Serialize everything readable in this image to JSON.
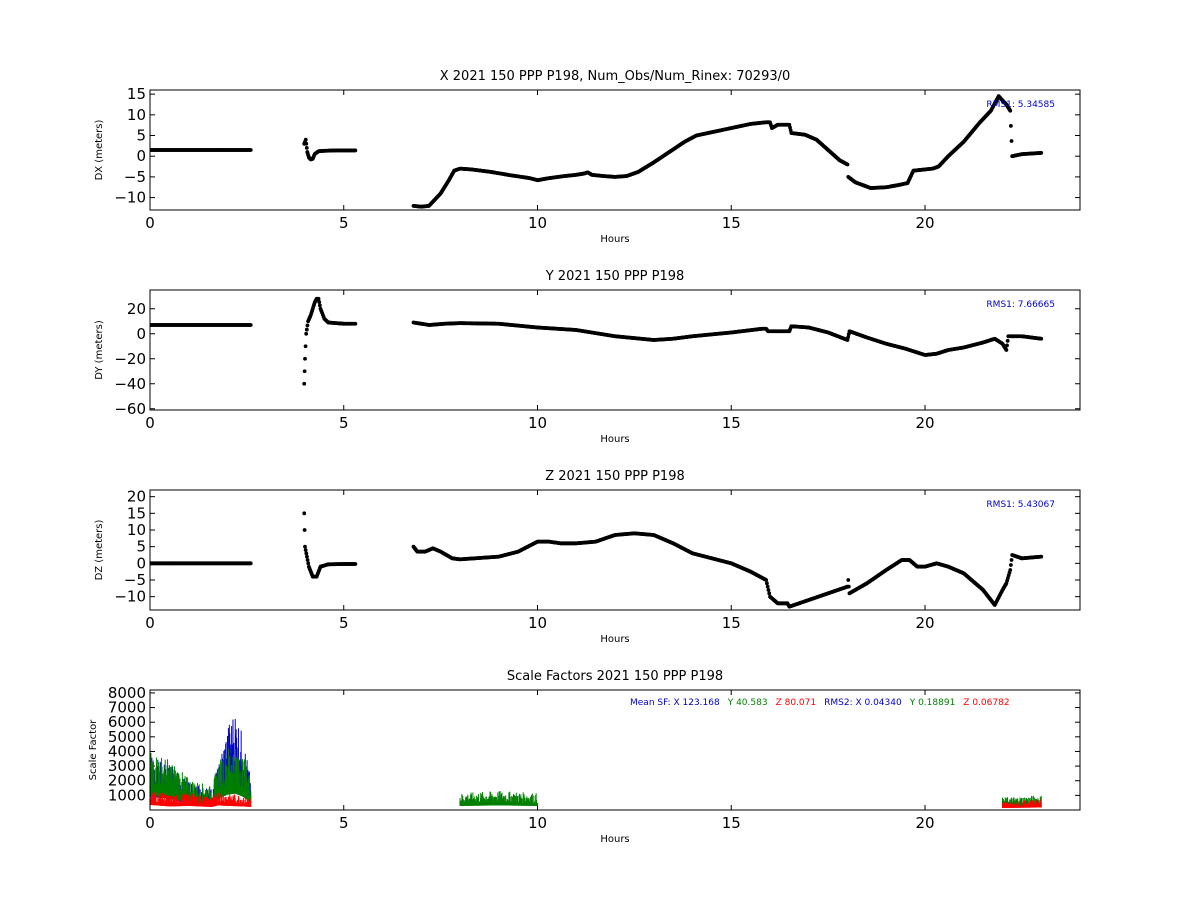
{
  "chart_data": [
    {
      "type": "scatter",
      "title": "X 2021 150 PPP  P198, Num_Obs/Num_Rinex: 70293/0",
      "xlabel": "Hours",
      "ylabel": "DX (meters)",
      "xlim": [
        0,
        24
      ],
      "ylim": [
        -13,
        16
      ],
      "x_ticks": [
        0,
        5,
        10,
        15,
        20
      ],
      "y_ticks": [
        -10,
        -5,
        0,
        5,
        10,
        15
      ],
      "annotation": "RMS1:  5.34585",
      "colors": {
        "points": "#000000",
        "error": "#d2691e",
        "annotation": "#0000cc"
      },
      "series": [
        {
          "points": [
            [
              0,
              1.5
            ],
            [
              2.6,
              1.5
            ]
          ]
        },
        {
          "points": [
            [
              3.98,
              3
            ],
            [
              4.02,
              4
            ],
            [
              4.06,
              1
            ],
            [
              4.1,
              -0.3
            ],
            [
              4.15,
              -0.8
            ],
            [
              4.2,
              -0.6
            ],
            [
              4.25,
              0.5
            ],
            [
              4.35,
              1.2
            ],
            [
              4.5,
              1.3
            ],
            [
              4.8,
              1.4
            ],
            [
              5.1,
              1.4
            ],
            [
              5.3,
              1.4
            ]
          ]
        },
        {
          "points": [
            [
              6.8,
              -12
            ],
            [
              7,
              -12.2
            ],
            [
              7.2,
              -12
            ],
            [
              7.5,
              -9
            ],
            [
              7.7,
              -6
            ],
            [
              7.85,
              -3.5
            ],
            [
              8,
              -3
            ],
            [
              8.3,
              -3.2
            ],
            [
              8.8,
              -3.8
            ],
            [
              9.3,
              -4.6
            ],
            [
              9.8,
              -5.3
            ],
            [
              10,
              -5.8
            ],
            [
              10.3,
              -5.3
            ],
            [
              10.7,
              -4.8
            ],
            [
              11,
              -4.5
            ],
            [
              11.2,
              -4.2
            ],
            [
              11.3,
              -3.9
            ],
            [
              11.4,
              -4.5
            ],
            [
              11.7,
              -4.8
            ],
            [
              12,
              -5
            ],
            [
              12.3,
              -4.8
            ],
            [
              12.6,
              -3.8
            ],
            [
              13,
              -1.5
            ],
            [
              13.4,
              1
            ],
            [
              13.8,
              3.5
            ],
            [
              14.1,
              5
            ],
            [
              14.5,
              5.8
            ],
            [
              15,
              6.8
            ],
            [
              15.5,
              7.8
            ],
            [
              15.9,
              8.2
            ],
            [
              16,
              8.2
            ],
            [
              16.05,
              6.8
            ],
            [
              16.2,
              7.6
            ],
            [
              16.5,
              7.6
            ],
            [
              16.55,
              5.6
            ],
            [
              16.9,
              5.2
            ],
            [
              17.2,
              4
            ],
            [
              17.5,
              1.5
            ],
            [
              17.8,
              -1
            ],
            [
              18,
              -2
            ],
            [
              18.02,
              -5
            ],
            [
              18.2,
              -6.3
            ],
            [
              18.6,
              -7.7
            ],
            [
              19,
              -7.5
            ],
            [
              19.3,
              -7
            ],
            [
              19.55,
              -6.5
            ],
            [
              19.7,
              -3.5
            ],
            [
              20,
              -3.2
            ],
            [
              20.2,
              -3
            ],
            [
              20.35,
              -2.5
            ],
            [
              20.6,
              0
            ],
            [
              21,
              3.5
            ],
            [
              21.4,
              8
            ],
            [
              21.7,
              11
            ],
            [
              21.9,
              14.5
            ],
            [
              22.1,
              12.5
            ],
            [
              22.2,
              11
            ],
            [
              22.25,
              0
            ],
            [
              22.5,
              0.5
            ],
            [
              23,
              0.8
            ]
          ]
        }
      ]
    },
    {
      "type": "scatter",
      "title": "Y 2021 150 PPP  P198",
      "xlabel": "Hours",
      "ylabel": "DY (meters)",
      "xlim": [
        0,
        24
      ],
      "ylim": [
        -61,
        35
      ],
      "x_ticks": [
        0,
        5,
        10,
        15,
        20
      ],
      "y_ticks": [
        -60,
        -40,
        -20,
        0,
        20
      ],
      "annotation": "RMS1:  7.66665",
      "colors": {
        "points": "#000000",
        "error": "#d2691e",
        "annotation": "#0000cc"
      },
      "series": [
        {
          "points": [
            [
              0,
              7
            ],
            [
              2.6,
              7
            ]
          ]
        },
        {
          "points": [
            [
              3.98,
              -40
            ],
            [
              4,
              -20
            ],
            [
              4.03,
              0
            ],
            [
              4.08,
              10
            ],
            [
              4.15,
              15
            ],
            [
              4.2,
              20
            ],
            [
              4.25,
              25
            ],
            [
              4.3,
              28
            ],
            [
              4.35,
              28
            ],
            [
              4.4,
              20
            ],
            [
              4.5,
              12
            ],
            [
              4.6,
              9
            ],
            [
              5,
              8
            ],
            [
              5.3,
              8
            ]
          ]
        },
        {
          "points": [
            [
              6.8,
              9
            ],
            [
              7.2,
              7
            ],
            [
              7.6,
              8
            ],
            [
              8,
              8.5
            ],
            [
              9,
              8
            ],
            [
              10,
              5
            ],
            [
              11,
              3
            ],
            [
              12,
              -2
            ],
            [
              13,
              -5
            ],
            [
              13.5,
              -4
            ],
            [
              14,
              -2
            ],
            [
              15,
              1
            ],
            [
              15.8,
              4
            ],
            [
              15.9,
              4
            ],
            [
              15.95,
              2
            ],
            [
              16.5,
              2
            ],
            [
              16.55,
              6
            ],
            [
              17,
              5
            ],
            [
              17.5,
              1
            ],
            [
              18,
              -5
            ],
            [
              18.05,
              2
            ],
            [
              18.5,
              -3
            ],
            [
              19,
              -8
            ],
            [
              19.5,
              -12
            ],
            [
              20,
              -17
            ],
            [
              20.3,
              -16
            ],
            [
              20.6,
              -13
            ],
            [
              21,
              -11
            ],
            [
              21.5,
              -7
            ],
            [
              21.8,
              -4
            ],
            [
              22,
              -8
            ],
            [
              22.1,
              -13
            ],
            [
              22.15,
              -2
            ],
            [
              22.5,
              -2
            ],
            [
              23,
              -4
            ]
          ]
        }
      ]
    },
    {
      "type": "scatter",
      "title": "Z 2021 150 PPP  P198",
      "xlabel": "Hours",
      "ylabel": "DZ (meters)",
      "xlim": [
        0,
        24
      ],
      "ylim": [
        -14,
        22
      ],
      "x_ticks": [
        0,
        5,
        10,
        15,
        20
      ],
      "y_ticks": [
        -10,
        -5,
        0,
        5,
        10,
        15,
        20
      ],
      "annotation": "RMS1:  5.43067",
      "colors": {
        "points": "#000000",
        "error": "#d2691e",
        "annotation": "#0000cc"
      },
      "series": [
        {
          "points": [
            [
              0,
              0
            ],
            [
              2.6,
              0
            ]
          ]
        },
        {
          "points": [
            [
              3.98,
              15
            ],
            [
              4,
              5
            ],
            [
              4.05,
              2
            ],
            [
              4.1,
              -1
            ],
            [
              4.2,
              -4
            ],
            [
              4.3,
              -4
            ],
            [
              4.4,
              -1
            ],
            [
              4.6,
              -0.3
            ],
            [
              5,
              -0.2
            ],
            [
              5.3,
              -0.2
            ]
          ]
        },
        {
          "points": [
            [
              6.8,
              5
            ],
            [
              6.9,
              3.5
            ],
            [
              7.1,
              3.5
            ],
            [
              7.3,
              4.5
            ],
            [
              7.5,
              3.5
            ],
            [
              7.8,
              1.5
            ],
            [
              8,
              1.2
            ],
            [
              9,
              2
            ],
            [
              9.5,
              3.5
            ],
            [
              10,
              6.5
            ],
            [
              10.3,
              6.5
            ],
            [
              10.6,
              6
            ],
            [
              11,
              6
            ],
            [
              11.5,
              6.5
            ],
            [
              12,
              8.5
            ],
            [
              12.5,
              9
            ],
            [
              13,
              8.5
            ],
            [
              13.5,
              6
            ],
            [
              14,
              3
            ],
            [
              14.5,
              1.5
            ],
            [
              15,
              0
            ],
            [
              15.5,
              -2.5
            ],
            [
              15.9,
              -5
            ],
            [
              16,
              -10
            ],
            [
              16.2,
              -12
            ],
            [
              16.45,
              -12
            ],
            [
              16.5,
              -13
            ],
            [
              17,
              -11
            ],
            [
              17.5,
              -9
            ],
            [
              18,
              -7
            ],
            [
              18.02,
              -5
            ],
            [
              18.05,
              -9
            ],
            [
              18.5,
              -6
            ],
            [
              19,
              -2
            ],
            [
              19.4,
              1
            ],
            [
              19.6,
              1
            ],
            [
              19.8,
              -1
            ],
            [
              20,
              -1
            ],
            [
              20.3,
              0
            ],
            [
              20.6,
              -1
            ],
            [
              21,
              -3
            ],
            [
              21.5,
              -8
            ],
            [
              21.8,
              -12.5
            ],
            [
              22,
              -8
            ],
            [
              22.1,
              -6
            ],
            [
              22.2,
              -2
            ],
            [
              22.25,
              2.5
            ],
            [
              22.5,
              1.5
            ],
            [
              23,
              2
            ]
          ]
        }
      ]
    },
    {
      "type": "scatter",
      "title": "Scale Factors 2021 150 PPP  P198",
      "xlabel": "Hours",
      "ylabel": "Scale Factor",
      "xlim": [
        0,
        24
      ],
      "ylim": [
        0,
        8200
      ],
      "x_ticks": [
        0,
        5,
        10,
        15,
        20
      ],
      "y_ticks": [
        1000,
        2000,
        3000,
        4000,
        5000,
        6000,
        7000,
        8000
      ],
      "legend_text": [
        {
          "text": "Mean SF: X 123.168",
          "color": "#0000cc"
        },
        {
          "text": "Y  40.583",
          "color": "#007f00"
        },
        {
          "text": "Z  80.071",
          "color": "#ff0000"
        },
        {
          "text": "RMS2: X  0.04340",
          "color": "#0000cc"
        },
        {
          "text": "Y  0.18891",
          "color": "#007f00"
        },
        {
          "text": "Z  0.06782",
          "color": "#ff0000"
        }
      ],
      "series": [
        {
          "name": "X",
          "color": "#0000cc",
          "points": [
            [
              0,
              2600
            ],
            [
              0.5,
              2200
            ],
            [
              1,
              1300
            ],
            [
              1.6,
              1000
            ],
            [
              1.75,
              2000
            ],
            [
              2,
              4000
            ],
            [
              2.2,
              4800
            ],
            [
              2.4,
              3500
            ],
            [
              2.6,
              1500
            ],
            [
              3.95,
              100
            ],
            [
              5.3,
              100
            ],
            [
              6.8,
              50
            ],
            [
              8,
              500
            ],
            [
              10,
              700
            ],
            [
              11.5,
              900
            ],
            [
              13,
              700
            ],
            [
              15,
              600
            ],
            [
              17,
              500
            ],
            [
              19,
              700
            ],
            [
              21,
              800
            ],
            [
              23,
              600
            ]
          ]
        },
        {
          "name": "Y",
          "color": "#007f00",
          "points": [
            [
              0,
              2800
            ],
            [
              0.5,
              2400
            ],
            [
              1,
              1500
            ],
            [
              1.6,
              1100
            ],
            [
              1.75,
              2200
            ],
            [
              2,
              3000
            ],
            [
              2.2,
              3200
            ],
            [
              2.4,
              2600
            ],
            [
              2.6,
              1500
            ],
            [
              3.95,
              80
            ],
            [
              5.3,
              80
            ],
            [
              6.8,
              100
            ],
            [
              8,
              800
            ],
            [
              9,
              900
            ],
            [
              10,
              800
            ],
            [
              12,
              700
            ],
            [
              14,
              700
            ],
            [
              16,
              600
            ],
            [
              18,
              600
            ],
            [
              20,
              700
            ],
            [
              22,
              600
            ],
            [
              23,
              700
            ]
          ]
        },
        {
          "name": "Z",
          "color": "#ff0000",
          "points": [
            [
              0,
              1000
            ],
            [
              0.5,
              700
            ],
            [
              1,
              800
            ],
            [
              1.6,
              600
            ],
            [
              1.75,
              900
            ],
            [
              2,
              800
            ],
            [
              2.4,
              700
            ],
            [
              2.6,
              600
            ],
            [
              6.8,
              50
            ],
            [
              8,
              400
            ],
            [
              10,
              500
            ],
            [
              12,
              500
            ],
            [
              14,
              500
            ],
            [
              16,
              450
            ],
            [
              18,
              400
            ],
            [
              20,
              450
            ],
            [
              22,
              400
            ],
            [
              23,
              500
            ]
          ]
        }
      ]
    }
  ]
}
